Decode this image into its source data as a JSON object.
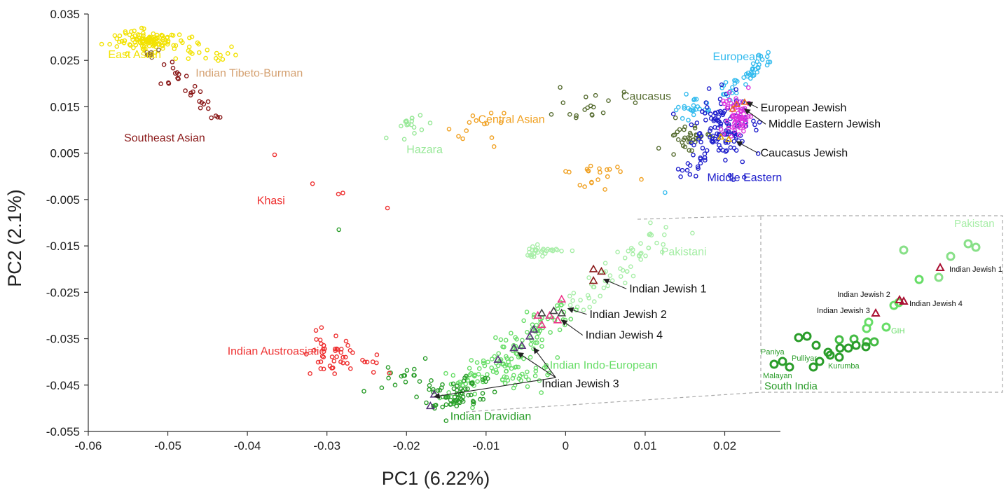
{
  "chart_data": {
    "type": "scatter",
    "xlabel": "PC1 (6.22%)",
    "ylabel": "PC2 (2.1%)",
    "xlim": [
      -0.06,
      0.027
    ],
    "ylim": [
      -0.055,
      0.035
    ],
    "xticks": [
      "-0.06",
      "-0.05",
      "-0.04",
      "-0.03",
      "-0.02",
      "-0.01",
      "0",
      "0.01",
      "0.02"
    ],
    "yticks": [
      "0.035",
      "0.025",
      "0.015",
      "0.005",
      "-0.005",
      "-0.015",
      "-0.025",
      "-0.035",
      "-0.045",
      "-0.055"
    ],
    "group_labels": [
      {
        "text": "East Asian",
        "color": "#f2e200",
        "x": -0.0575,
        "y": 0.0255
      },
      {
        "text": "Indian Tibeto-Burman",
        "color": "#d4a070",
        "x": -0.0465,
        "y": 0.0215
      },
      {
        "text": "Southeast Asian",
        "color": "#8b1a1a",
        "x": -0.0555,
        "y": 0.0075
      },
      {
        "text": "Khasi",
        "color": "#ee3030",
        "x": -0.0388,
        "y": -0.006
      },
      {
        "text": "Hazara",
        "color": "#98e898",
        "x": -0.02,
        "y": 0.005
      },
      {
        "text": "Central Asian",
        "color": "#f0a020",
        "x": -0.011,
        "y": 0.0115
      },
      {
        "text": "Caucasus",
        "color": "#556b2f",
        "x": 0.007,
        "y": 0.0165
      },
      {
        "text": "European",
        "color": "#33bbee",
        "x": 0.0185,
        "y": 0.025
      },
      {
        "text": "Middle Eastern",
        "color": "#2020cc",
        "x": 0.0178,
        "y": -0.001
      },
      {
        "text": "Pakistani",
        "color": "#a8eea8",
        "x": 0.012,
        "y": -0.017
      },
      {
        "text": "Indian Austroasiatic",
        "color": "#ee3030",
        "x": -0.0425,
        "y": -0.0385
      },
      {
        "text": "Indian Indo-European",
        "color": "#66dd66",
        "x": -0.002,
        "y": -0.0415
      },
      {
        "text": "Indian Dravidian",
        "color": "#2a9d2a",
        "x": -0.0145,
        "y": -0.0525
      }
    ],
    "arrow_labels": [
      {
        "text": "European Jewish",
        "tx": 0.0245,
        "ty": 0.014,
        "ax": 0.0228,
        "ay": 0.016
      },
      {
        "text": "Middle Eastern Jewish",
        "tx": 0.0255,
        "ty": 0.0105,
        "ax": 0.0225,
        "ay": 0.0145
      },
      {
        "text": "Caucasus Jewish",
        "tx": 0.0245,
        "ty": 0.0043,
        "ax": 0.0215,
        "ay": 0.0075
      },
      {
        "text": "Indian Jewish 1",
        "tx": 0.008,
        "ty": -0.025,
        "ax": 0.0048,
        "ay": -0.0222
      },
      {
        "text": "Indian Jewish 2",
        "tx": 0.003,
        "ty": -0.0305,
        "ax": 0.0003,
        "ay": -0.0285
      },
      {
        "text": "Indian Jewish 4",
        "tx": 0.0025,
        "ty": -0.035,
        "ax": -0.0005,
        "ay": -0.031
      }
    ],
    "indian_jewish_3": {
      "text": "Indian Jewish 3",
      "tx": -0.003,
      "ty": -0.0455,
      "targets": [
        [
          -0.0165,
          -0.0475
        ],
        [
          -0.006,
          -0.038
        ],
        [
          -0.004,
          -0.037
        ]
      ]
    },
    "inset": {
      "labels": [
        {
          "text": "Pakistan",
          "size": 15,
          "color": "#a8eea8"
        },
        {
          "text": "Indian Jewish 1",
          "size": 11,
          "color": "#111111"
        },
        {
          "text": "Indian Jewish 2",
          "size": 11,
          "color": "#111111"
        },
        {
          "text": "Indian Jewish 3",
          "size": 11,
          "color": "#111111"
        },
        {
          "text": "Indian Jewish 4",
          "size": 11,
          "color": "#111111"
        },
        {
          "text": "GIH",
          "size": 11,
          "color": "#66dd66"
        },
        {
          "text": "Paniya",
          "size": 11,
          "color": "#2a9d2a"
        },
        {
          "text": "Pulliyar",
          "size": 11,
          "color": "#2a9d2a"
        },
        {
          "text": "Kurumba",
          "size": 11,
          "color": "#2a9d2a"
        },
        {
          "text": "Malayan",
          "size": 11,
          "color": "#2a9d2a"
        },
        {
          "text": "South India",
          "size": 15,
          "color": "#2a9d2a"
        }
      ]
    },
    "grid": false,
    "legend": "none"
  }
}
